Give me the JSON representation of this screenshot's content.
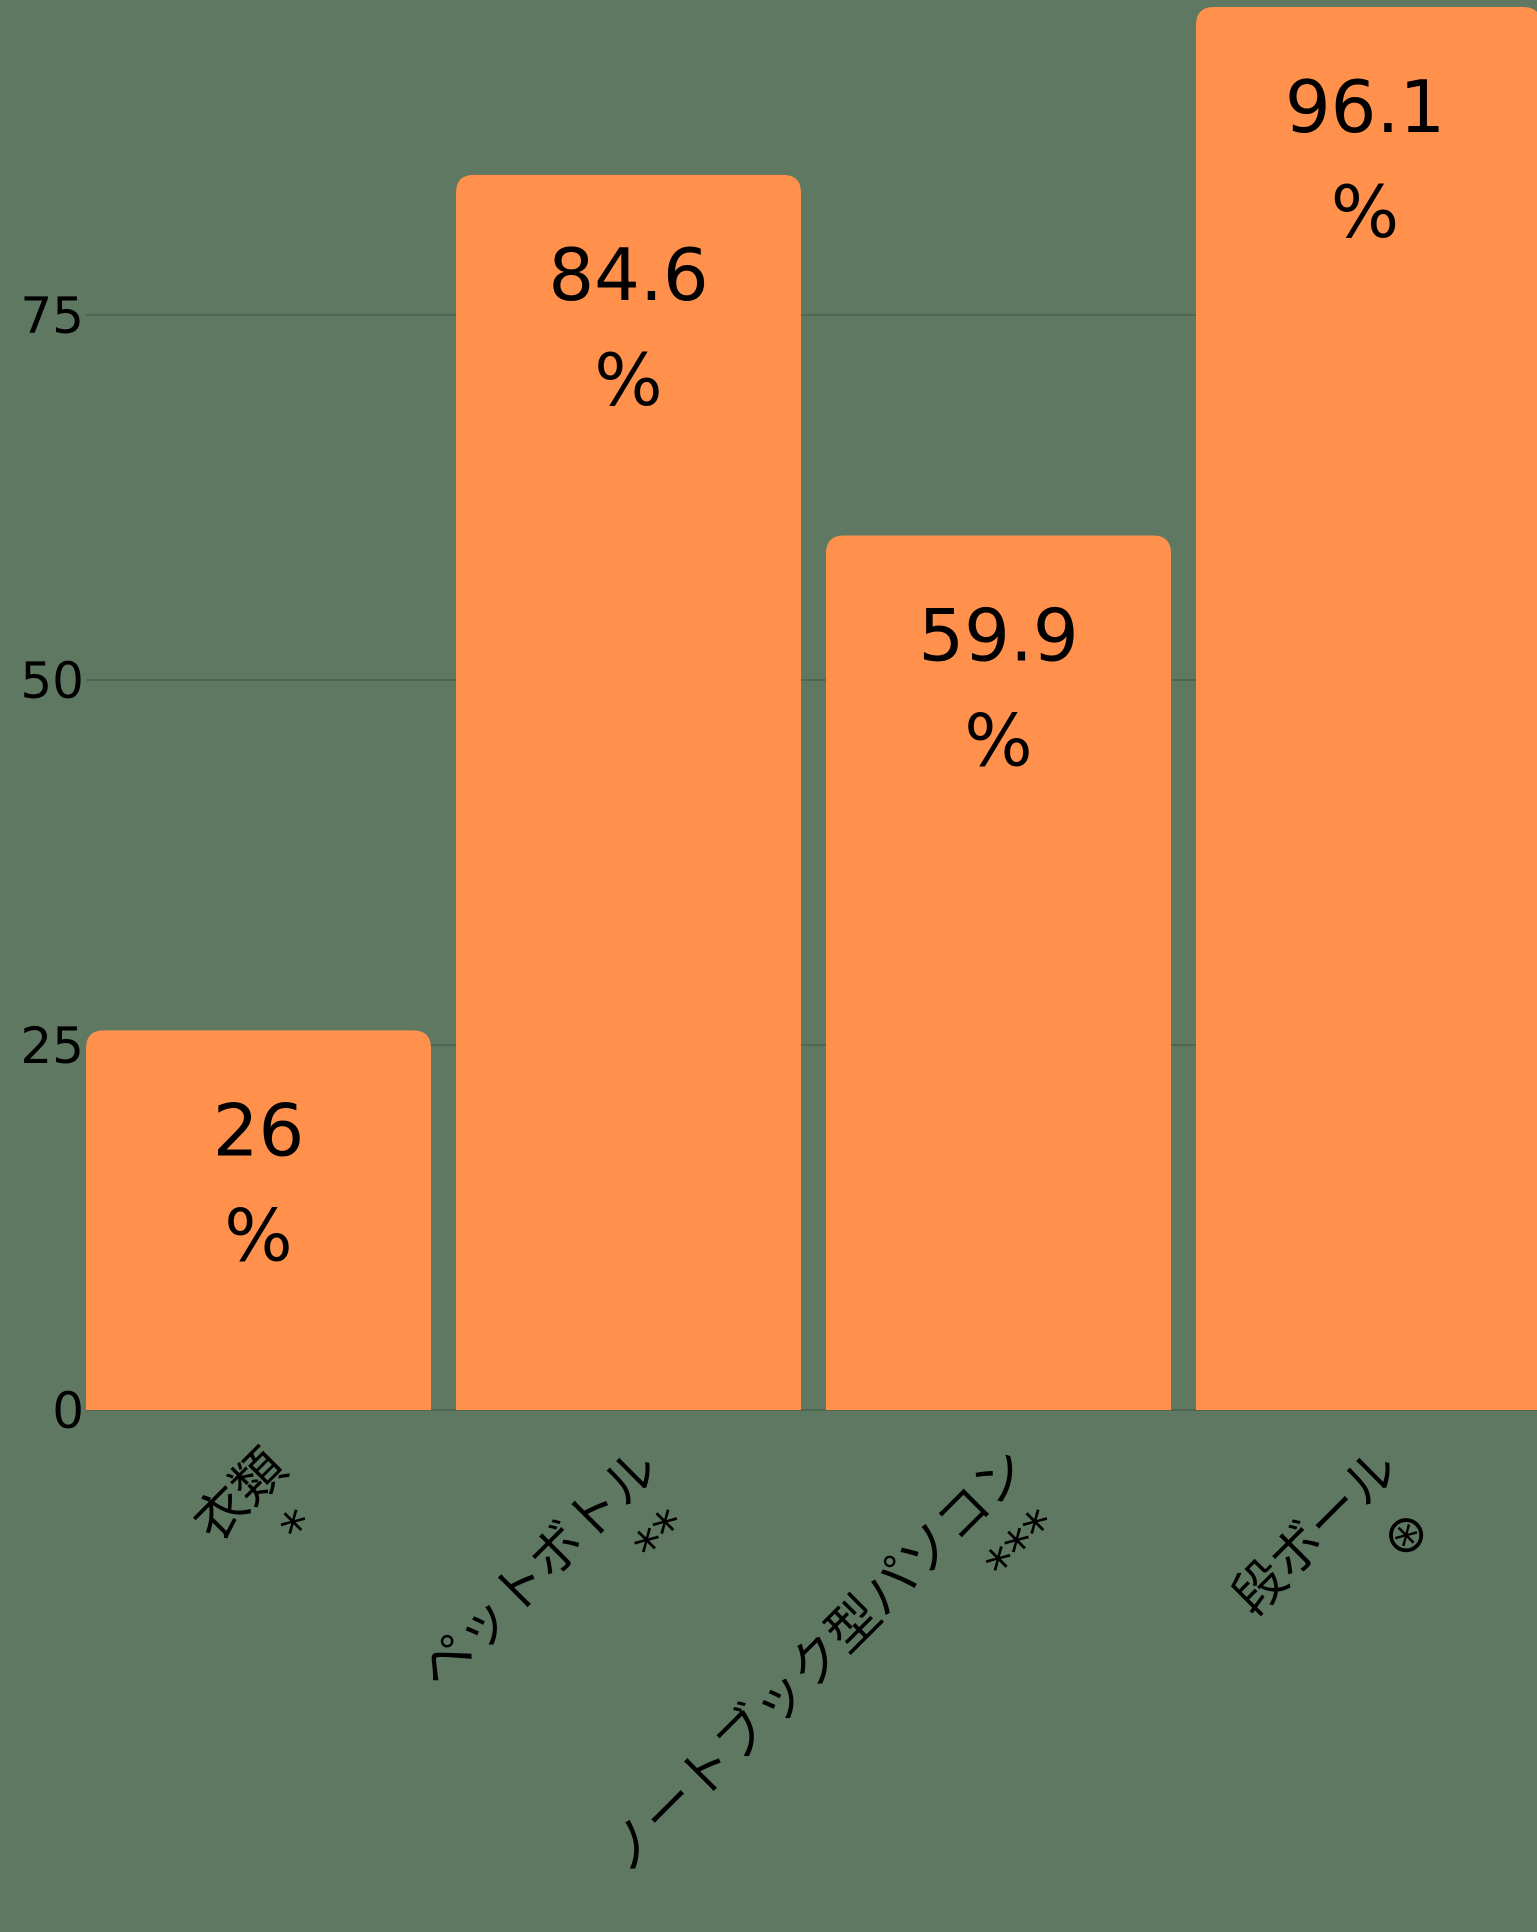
{
  "chart_data": {
    "type": "bar",
    "categories": [
      "衣類*",
      "ペットボトル**",
      "ノートブック型パソコン***",
      "段ボール⊛"
    ],
    "category_lines": [
      [
        "衣類",
        "*"
      ],
      [
        "ペットボトル",
        "**"
      ],
      [
        "ノートブック型パソコン",
        "***"
      ],
      [
        "段ボール",
        "⊛"
      ]
    ],
    "values": [
      26,
      84.6,
      59.9,
      96.1
    ],
    "value_labels": [
      "26",
      "84.6",
      "59.9",
      "96.1"
    ],
    "value_unit": "%",
    "ylim": [
      0,
      100
    ],
    "yticks": [
      0,
      25,
      50,
      75
    ],
    "title": "",
    "xlabel": "",
    "ylabel": "",
    "grid": true,
    "colors": {
      "background": "#5e7862",
      "bar": "#ff914d",
      "grid": "#4f6654",
      "text": "#000000"
    }
  }
}
